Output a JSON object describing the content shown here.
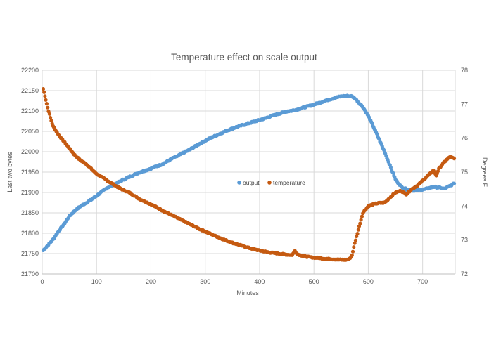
{
  "chart_data": {
    "type": "scatter",
    "title": "Temperature effect on scale output",
    "xlabel": "Minutes",
    "ylabel_left": "Last two bytes",
    "ylabel_right": "Degrees F",
    "xlim": [
      0,
      760
    ],
    "x_ticks": [
      "0",
      "100",
      "200",
      "300",
      "400",
      "500",
      "600",
      "700"
    ],
    "ylim_left": [
      21700,
      22200
    ],
    "y_left_ticks": [
      "21700",
      "21750",
      "21800",
      "21850",
      "21900",
      "21950",
      "22000",
      "22050",
      "22100",
      "22150",
      "22200"
    ],
    "ylim_right": [
      72,
      78
    ],
    "y_right_ticks": [
      "72",
      "73",
      "74",
      "75",
      "76",
      "77",
      "78"
    ],
    "grid": "vertical and horizontal",
    "legend_position": "center",
    "series": [
      {
        "name": "output",
        "axis": "left",
        "color": "#5b9bd5",
        "points": [
          [
            2,
            21758
          ],
          [
            10,
            21770
          ],
          [
            20,
            21785
          ],
          [
            30,
            21805
          ],
          [
            40,
            21822
          ],
          [
            50,
            21842
          ],
          [
            60,
            21855
          ],
          [
            70,
            21866
          ],
          [
            80,
            21874
          ],
          [
            90,
            21882
          ],
          [
            100,
            21892
          ],
          [
            110,
            21902
          ],
          [
            120,
            21912
          ],
          [
            130,
            21918
          ],
          [
            140,
            21925
          ],
          [
            150,
            21932
          ],
          [
            160,
            21938
          ],
          [
            170,
            21944
          ],
          [
            180,
            21950
          ],
          [
            190,
            21954
          ],
          [
            200,
            21959
          ],
          [
            210,
            21964
          ],
          [
            220,
            21969
          ],
          [
            230,
            21976
          ],
          [
            240,
            21984
          ],
          [
            250,
            21990
          ],
          [
            260,
            21998
          ],
          [
            270,
            22004
          ],
          [
            280,
            22012
          ],
          [
            290,
            22020
          ],
          [
            300,
            22027
          ],
          [
            310,
            22034
          ],
          [
            320,
            22040
          ],
          [
            330,
            22046
          ],
          [
            340,
            22052
          ],
          [
            350,
            22057
          ],
          [
            360,
            22062
          ],
          [
            370,
            22066
          ],
          [
            380,
            22070
          ],
          [
            390,
            22074
          ],
          [
            400,
            22078
          ],
          [
            410,
            22082
          ],
          [
            420,
            22087
          ],
          [
            430,
            22091
          ],
          [
            440,
            22095
          ],
          [
            450,
            22099
          ],
          [
            460,
            22101
          ],
          [
            470,
            22104
          ],
          [
            480,
            22108
          ],
          [
            490,
            22112
          ],
          [
            500,
            22116
          ],
          [
            510,
            22120
          ],
          [
            520,
            22125
          ],
          [
            530,
            22129
          ],
          [
            540,
            22133
          ],
          [
            550,
            22136
          ],
          [
            560,
            22137
          ],
          [
            570,
            22136
          ],
          [
            575,
            22132
          ],
          [
            580,
            22124
          ],
          [
            590,
            22110
          ],
          [
            600,
            22088
          ],
          [
            610,
            22060
          ],
          [
            620,
            22030
          ],
          [
            630,
            22000
          ],
          [
            640,
            21966
          ],
          [
            650,
            21932
          ],
          [
            660,
            21915
          ],
          [
            670,
            21908
          ],
          [
            680,
            21905
          ],
          [
            690,
            21905
          ],
          [
            700,
            21907
          ],
          [
            710,
            21910
          ],
          [
            720,
            21914
          ],
          [
            730,
            21912
          ],
          [
            740,
            21909
          ],
          [
            750,
            21916
          ],
          [
            758,
            21922
          ]
        ]
      },
      {
        "name": "temperature",
        "axis": "right",
        "color": "#c55a11",
        "points": [
          [
            2,
            77.45
          ],
          [
            5,
            77.25
          ],
          [
            10,
            76.9
          ],
          [
            15,
            76.6
          ],
          [
            20,
            76.35
          ],
          [
            30,
            76.1
          ],
          [
            40,
            75.9
          ],
          [
            50,
            75.7
          ],
          [
            60,
            75.5
          ],
          [
            70,
            75.35
          ],
          [
            80,
            75.25
          ],
          [
            90,
            75.1
          ],
          [
            100,
            74.95
          ],
          [
            110,
            74.85
          ],
          [
            120,
            74.75
          ],
          [
            130,
            74.65
          ],
          [
            140,
            74.55
          ],
          [
            150,
            74.47
          ],
          [
            160,
            74.4
          ],
          [
            170,
            74.3
          ],
          [
            180,
            74.2
          ],
          [
            190,
            74.13
          ],
          [
            200,
            74.05
          ],
          [
            210,
            73.97
          ],
          [
            220,
            73.88
          ],
          [
            230,
            73.8
          ],
          [
            240,
            73.72
          ],
          [
            250,
            73.64
          ],
          [
            260,
            73.56
          ],
          [
            270,
            73.48
          ],
          [
            280,
            73.4
          ],
          [
            290,
            73.32
          ],
          [
            300,
            73.25
          ],
          [
            310,
            73.18
          ],
          [
            320,
            73.11
          ],
          [
            330,
            73.04
          ],
          [
            340,
            72.98
          ],
          [
            350,
            72.92
          ],
          [
            360,
            72.87
          ],
          [
            370,
            72.82
          ],
          [
            380,
            72.77
          ],
          [
            390,
            72.73
          ],
          [
            400,
            72.69
          ],
          [
            410,
            72.66
          ],
          [
            420,
            72.63
          ],
          [
            430,
            72.61
          ],
          [
            440,
            72.59
          ],
          [
            450,
            72.57
          ],
          [
            460,
            72.56
          ],
          [
            465,
            72.68
          ],
          [
            470,
            72.58
          ],
          [
            480,
            72.53
          ],
          [
            490,
            72.5
          ],
          [
            500,
            72.48
          ],
          [
            510,
            72.47
          ],
          [
            520,
            72.45
          ],
          [
            530,
            72.44
          ],
          [
            540,
            72.43
          ],
          [
            550,
            72.42
          ],
          [
            560,
            72.42
          ],
          [
            565,
            72.44
          ],
          [
            570,
            72.55
          ],
          [
            575,
            72.9
          ],
          [
            580,
            73.2
          ],
          [
            585,
            73.5
          ],
          [
            590,
            73.8
          ],
          [
            600,
            74.0
          ],
          [
            610,
            74.06
          ],
          [
            620,
            74.09
          ],
          [
            630,
            74.1
          ],
          [
            640,
            74.25
          ],
          [
            650,
            74.4
          ],
          [
            660,
            74.45
          ],
          [
            670,
            74.35
          ],
          [
            680,
            74.5
          ],
          [
            690,
            74.6
          ],
          [
            700,
            74.75
          ],
          [
            710,
            74.9
          ],
          [
            720,
            75.05
          ],
          [
            725,
            74.9
          ],
          [
            730,
            75.1
          ],
          [
            740,
            75.3
          ],
          [
            750,
            75.45
          ],
          [
            758,
            75.4
          ]
        ]
      }
    ]
  }
}
